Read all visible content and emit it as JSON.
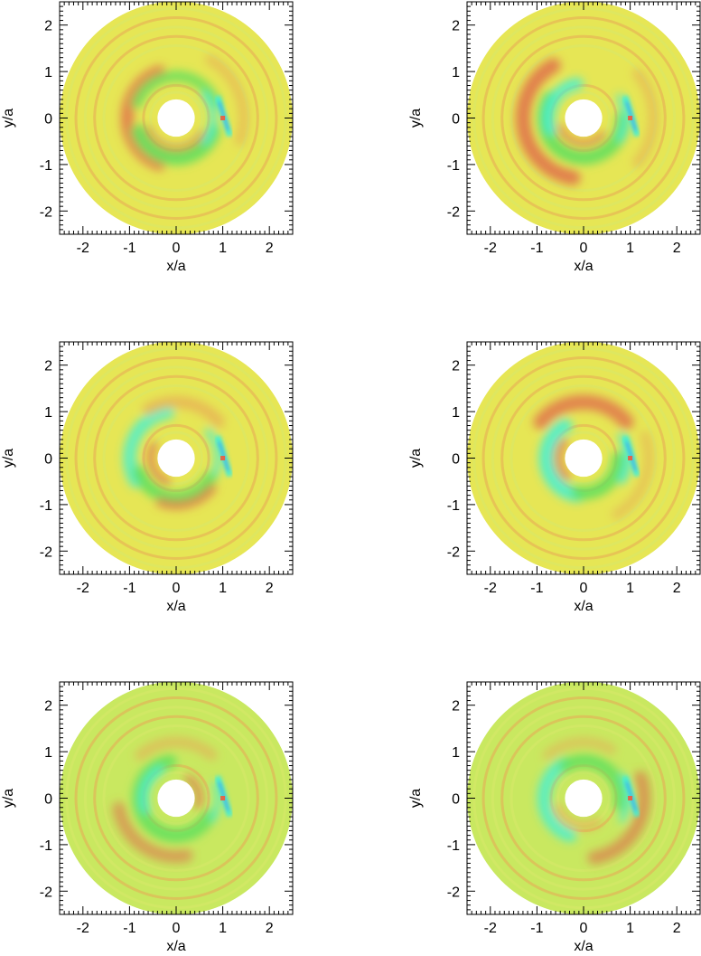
{
  "chart_data": {
    "type": "heatmap",
    "layout": "3 rows x 2 columns of polar disk maps",
    "panels": [
      {
        "xlabel": "x/a",
        "ylabel": "y/a",
        "xlim": [
          -2.5,
          2.5
        ],
        "ylim": [
          -2.5,
          2.5
        ],
        "xticks": [
          "-2",
          "-1",
          "0",
          "1",
          "2"
        ],
        "yticks": [
          "-2",
          "-1",
          "0",
          "1",
          "2"
        ],
        "disk": {
          "inner_radius": 0.4,
          "outer_radius": 2.5,
          "background": "#e6e655",
          "planet_x": 1.0,
          "planet_y": 0.0
        }
      },
      {
        "xlabel": "x/a",
        "ylabel": "y/a",
        "xlim": [
          -2.5,
          2.5
        ],
        "ylim": [
          -2.5,
          2.5
        ],
        "xticks": [
          "-2",
          "-1",
          "0",
          "1",
          "2"
        ],
        "yticks": [
          "-2",
          "-1",
          "0",
          "1",
          "2"
        ],
        "disk": {
          "inner_radius": 0.4,
          "outer_radius": 2.5,
          "background": "#e6e655",
          "planet_x": 1.0,
          "planet_y": 0.0
        }
      },
      {
        "xlabel": "x/a",
        "ylabel": "y/a",
        "xlim": [
          -2.5,
          2.5
        ],
        "ylim": [
          -2.5,
          2.5
        ],
        "xticks": [
          "-2",
          "-1",
          "0",
          "1",
          "2"
        ],
        "yticks": [
          "-2",
          "-1",
          "0",
          "1",
          "2"
        ],
        "disk": {
          "inner_radius": 0.4,
          "outer_radius": 2.5,
          "background": "#e6e655",
          "planet_x": 1.0,
          "planet_y": 0.0
        }
      },
      {
        "xlabel": "x/a",
        "ylabel": "y/a",
        "xlim": [
          -2.5,
          2.5
        ],
        "ylim": [
          -2.5,
          2.5
        ],
        "xticks": [
          "-2",
          "-1",
          "0",
          "1",
          "2"
        ],
        "yticks": [
          "-2",
          "-1",
          "0",
          "1",
          "2"
        ],
        "disk": {
          "inner_radius": 0.4,
          "outer_radius": 2.5,
          "background": "#e6e655",
          "planet_x": 1.0,
          "planet_y": 0.0
        }
      },
      {
        "xlabel": "x/a",
        "ylabel": "y/a",
        "xlim": [
          -2.5,
          2.5
        ],
        "ylim": [
          -2.5,
          2.5
        ],
        "xticks": [
          "-2",
          "-1",
          "0",
          "1",
          "2"
        ],
        "yticks": [
          "-2",
          "-1",
          "0",
          "1",
          "2"
        ],
        "disk": {
          "inner_radius": 0.4,
          "outer_radius": 2.5,
          "background": "#c9e860",
          "planet_x": 1.0,
          "planet_y": 0.0
        }
      },
      {
        "xlabel": "x/a",
        "ylabel": "y/a",
        "xlim": [
          -2.5,
          2.5
        ],
        "ylim": [
          -2.5,
          2.5
        ],
        "xticks": [
          "-2",
          "-1",
          "0",
          "1",
          "2"
        ],
        "yticks": [
          "-2",
          "-1",
          "0",
          "1",
          "2"
        ],
        "disk": {
          "inner_radius": 0.4,
          "outer_radius": 2.5,
          "background": "#c9e860",
          "planet_x": 1.0,
          "planet_y": 0.0
        }
      }
    ]
  },
  "colors": {
    "disk_base": "#e6e655",
    "green": "#5ee05e",
    "cyan": "#3ef0d8",
    "red": "#e0664a",
    "orange": "#e8a855",
    "blue": "#3b5bff",
    "frame": "#000000"
  }
}
